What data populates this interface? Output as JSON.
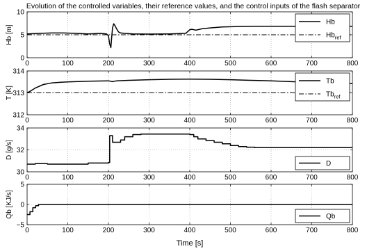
{
  "figure_title": "Evolution of the controlled variables, their reference values, and the control inputs of the flash separator",
  "xlabel": "Time [s]",
  "chart_data": [
    {
      "type": "line",
      "ylabel": "Hb [m]",
      "xlim": [
        0,
        800
      ],
      "ylim": [
        0,
        10
      ],
      "xticks": [
        "0",
        "100",
        "200",
        "300",
        "400",
        "500",
        "600",
        "700",
        "800"
      ],
      "yticks": [
        "0",
        "5",
        "10"
      ],
      "grid": true,
      "legend_position": "top-right",
      "series": [
        {
          "name": "Hb",
          "sub": "",
          "style": "solid",
          "x": [
            0,
            30,
            60,
            90,
            120,
            150,
            180,
            195,
            200,
            203,
            206,
            208,
            210,
            213,
            216,
            220,
            225,
            230,
            240,
            260,
            300,
            350,
            390,
            395,
            400,
            405,
            410,
            415,
            420,
            430,
            450,
            480,
            520,
            560,
            600,
            650,
            700,
            800
          ],
          "y": [
            5.2,
            5.3,
            5.4,
            5.4,
            5.3,
            5.2,
            5.3,
            5.2,
            4.8,
            3.0,
            2.2,
            4.5,
            6.5,
            7.4,
            7.0,
            6.3,
            5.6,
            5.4,
            5.3,
            5.2,
            5.15,
            5.2,
            5.3,
            5.7,
            6.1,
            6.2,
            6.1,
            6.0,
            6.1,
            6.3,
            6.5,
            6.7,
            6.8,
            6.85,
            6.85,
            6.85,
            6.85,
            6.85
          ]
        },
        {
          "name": "Hb",
          "sub": "ref",
          "style": "dashdot",
          "x": [
            0,
            800
          ],
          "y": [
            5.0,
            5.0
          ]
        }
      ]
    },
    {
      "type": "line",
      "ylabel": "T [K]",
      "xlim": [
        0,
        800
      ],
      "ylim": [
        312,
        314
      ],
      "xticks": [
        "0",
        "100",
        "200",
        "300",
        "400",
        "500",
        "600",
        "700",
        "800"
      ],
      "yticks": [
        "312",
        "313",
        "314"
      ],
      "grid": true,
      "legend_position": "top-right",
      "series": [
        {
          "name": "Tb",
          "sub": "",
          "style": "solid",
          "x": [
            0,
            10,
            20,
            40,
            60,
            80,
            100,
            150,
            200,
            210,
            220,
            250,
            300,
            350,
            400,
            450,
            500,
            550,
            600,
            650,
            700,
            800
          ],
          "y": [
            313.0,
            313.1,
            313.22,
            313.38,
            313.45,
            313.48,
            313.5,
            313.53,
            313.55,
            313.51,
            313.55,
            313.57,
            313.6,
            313.62,
            313.63,
            313.62,
            313.6,
            313.57,
            313.55,
            313.51,
            313.48,
            313.42
          ]
        },
        {
          "name": "Tb",
          "sub": "ref",
          "style": "dashdot",
          "x": [
            0,
            800
          ],
          "y": [
            313.0,
            313.0
          ]
        }
      ]
    },
    {
      "type": "line",
      "ylabel": "D [g/s]",
      "xlim": [
        0,
        800
      ],
      "ylim": [
        30,
        34
      ],
      "xticks": [
        "0",
        "100",
        "200",
        "300",
        "400",
        "500",
        "600",
        "700",
        "800"
      ],
      "yticks": [
        "30",
        "32",
        "34"
      ],
      "grid": true,
      "legend_position": "bottom-right",
      "series": [
        {
          "name": "D",
          "sub": "",
          "style": "step",
          "x": [
            0,
            20,
            50,
            100,
            150,
            200,
            203,
            210,
            230,
            240,
            260,
            280,
            300,
            380,
            400,
            410,
            420,
            440,
            460,
            480,
            500,
            520,
            540,
            560,
            580,
            600,
            650,
            700,
            800
          ],
          "y": [
            30.7,
            30.75,
            30.7,
            30.7,
            30.8,
            30.85,
            33.3,
            32.7,
            32.9,
            33.2,
            33.4,
            33.45,
            33.45,
            33.45,
            33.4,
            33.2,
            33.0,
            32.85,
            32.7,
            32.55,
            32.4,
            32.3,
            32.25,
            32.2,
            32.2,
            32.2,
            32.2,
            32.2,
            32.2
          ]
        }
      ]
    },
    {
      "type": "line",
      "ylabel": "Qb [KJ/s]",
      "xlim": [
        0,
        800
      ],
      "ylim": [
        -5,
        5
      ],
      "xticks": [
        "0",
        "100",
        "200",
        "300",
        "400",
        "500",
        "600",
        "700",
        "800"
      ],
      "yticks": [
        "−5",
        "0",
        "5"
      ],
      "grid": true,
      "legend_position": "bottom-right",
      "series": [
        {
          "name": "Qb",
          "sub": "",
          "style": "step",
          "x": [
            0,
            7,
            14,
            21,
            28,
            35,
            800
          ],
          "y": [
            -2.5,
            -1.8,
            -0.8,
            -0.3,
            0,
            0,
            0
          ]
        }
      ]
    }
  ]
}
